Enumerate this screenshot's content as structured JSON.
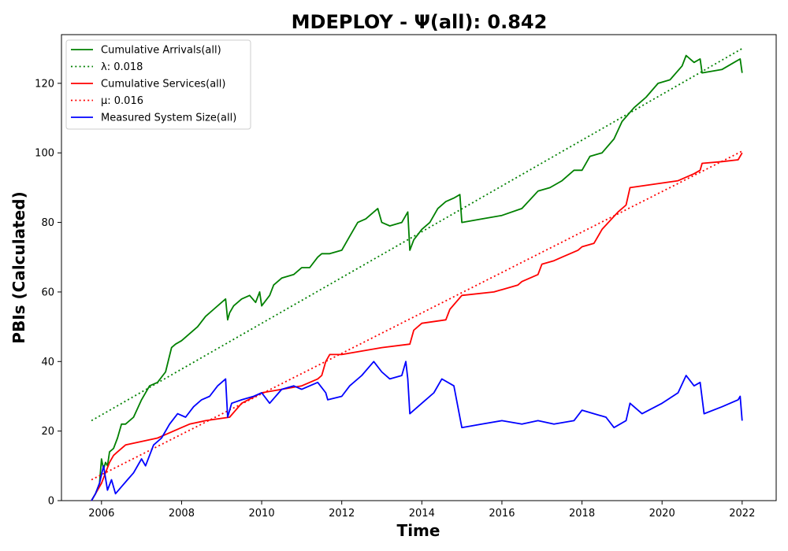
{
  "chart_data": {
    "type": "line",
    "title": "MDEPLOY -  Ψ(all): 0.842",
    "xlabel": "Time",
    "ylabel": "PBIs (Calculated)",
    "xlim": [
      2005.0,
      2022.85
    ],
    "ylim": [
      0,
      134
    ],
    "xticks": [
      2006,
      2008,
      2010,
      2012,
      2014,
      2016,
      2018,
      2020,
      2022
    ],
    "xtick_labels": [
      "2006",
      "2008",
      "2010",
      "2012",
      "2014",
      "2016",
      "2018",
      "2020",
      "2022"
    ],
    "yticks": [
      0,
      20,
      40,
      60,
      80,
      100,
      120
    ],
    "ytick_labels": [
      "0",
      "20",
      "40",
      "60",
      "80",
      "100",
      "120"
    ],
    "grid": false,
    "legend_position": "upper-left",
    "legend": [
      {
        "label": "Cumulative Arrivals(all)",
        "color": "#008000",
        "style": "solid"
      },
      {
        "label": "λ: 0.018",
        "color": "#008000",
        "style": "dotted"
      },
      {
        "label": "Cumulative Services(all)",
        "color": "#ff0000",
        "style": "solid"
      },
      {
        "label": "μ: 0.016",
        "color": "#ff0000",
        "style": "dotted"
      },
      {
        "label": "Measured System Size(all)",
        "color": "#0000ff",
        "style": "solid"
      }
    ],
    "series": [
      {
        "name": "Cumulative Arrivals(all)",
        "color": "#008000",
        "style": "solid",
        "x": [
          2005.75,
          2005.85,
          2005.95,
          2006.0,
          2006.05,
          2006.1,
          2006.15,
          2006.2,
          2006.3,
          2006.4,
          2006.5,
          2006.6,
          2006.8,
          2007.0,
          2007.2,
          2007.4,
          2007.6,
          2007.75,
          2007.85,
          2008.0,
          2008.2,
          2008.4,
          2008.6,
          2008.8,
          2009.0,
          2009.1,
          2009.15,
          2009.2,
          2009.3,
          2009.5,
          2009.7,
          2009.85,
          2009.95,
          2010.0,
          2010.2,
          2010.3,
          2010.5,
          2010.8,
          2011.0,
          2011.2,
          2011.4,
          2011.5,
          2011.7,
          2012.0,
          2012.2,
          2012.4,
          2012.6,
          2012.9,
          2013.0,
          2013.2,
          2013.5,
          2013.65,
          2013.7,
          2013.8,
          2014.0,
          2014.2,
          2014.4,
          2014.6,
          2014.8,
          2014.95,
          2015.0,
          2015.5,
          2016.0,
          2016.5,
          2016.9,
          2017.2,
          2017.5,
          2017.8,
          2018.0,
          2018.2,
          2018.5,
          2018.8,
          2019.0,
          2019.3,
          2019.6,
          2019.9,
          2020.2,
          2020.5,
          2020.6,
          2020.8,
          2020.95,
          2021.0,
          2021.5,
          2021.8,
          2021.95,
          2022.0
        ],
        "values": [
          0,
          2,
          5,
          12,
          9,
          11,
          10,
          14,
          15,
          18,
          22,
          22,
          24,
          29,
          33,
          34,
          37,
          44,
          45,
          46,
          48,
          50,
          53,
          55,
          57,
          58,
          52,
          54,
          56,
          58,
          59,
          57,
          60,
          56,
          59,
          62,
          64,
          65,
          67,
          67,
          70,
          71,
          71,
          72,
          76,
          80,
          81,
          84,
          80,
          79,
          80,
          83,
          72,
          75,
          78,
          80,
          84,
          86,
          87,
          88,
          80,
          81,
          82,
          84,
          89,
          90,
          92,
          95,
          95,
          99,
          100,
          104,
          109,
          113,
          116,
          120,
          121,
          125,
          128,
          126,
          127,
          123,
          124,
          126,
          127,
          123
        ]
      },
      {
        "name": "λ: 0.018",
        "color": "#008000",
        "style": "dotted",
        "x": [
          2005.75,
          2022.0
        ],
        "values": [
          23,
          130
        ]
      },
      {
        "name": "Cumulative Services(all)",
        "color": "#ff0000",
        "style": "solid",
        "x": [
          2005.75,
          2005.85,
          2006.0,
          2006.1,
          2006.2,
          2006.3,
          2006.4,
          2006.5,
          2006.6,
          2007.0,
          2007.4,
          2007.6,
          2008.0,
          2008.2,
          2008.6,
          2009.2,
          2009.5,
          2010.0,
          2010.5,
          2011.0,
          2011.4,
          2011.5,
          2011.6,
          2011.7,
          2012.0,
          2012.5,
          2013.0,
          2013.7,
          2013.8,
          2014.0,
          2014.6,
          2014.7,
          2015.0,
          2015.8,
          2016.4,
          2016.5,
          2016.9,
          2017.0,
          2017.3,
          2017.5,
          2017.9,
          2018.0,
          2018.3,
          2018.5,
          2018.9,
          2019.1,
          2019.2,
          2019.8,
          2020.4,
          2020.8,
          2020.95,
          2021.0,
          2021.5,
          2021.9,
          2022.0
        ],
        "values": [
          0,
          2,
          5,
          8,
          11,
          13,
          14,
          15,
          16,
          17,
          18,
          19,
          21,
          22,
          23,
          24,
          28,
          31,
          32,
          33,
          35,
          36,
          40,
          42,
          42,
          43,
          44,
          45,
          49,
          51,
          52,
          55,
          59,
          60,
          62,
          63,
          65,
          68,
          69,
          70,
          72,
          73,
          74,
          78,
          83,
          85,
          90,
          91,
          92,
          94,
          95,
          97,
          97.5,
          98,
          100
        ]
      },
      {
        "name": "μ: 0.016",
        "color": "#ff0000",
        "style": "dotted",
        "x": [
          2005.75,
          2022.0
        ],
        "values": [
          6,
          100.5
        ]
      },
      {
        "name": "Measured System Size(all)",
        "color": "#0000ff",
        "style": "solid",
        "x": [
          2005.75,
          2005.85,
          2005.95,
          2006.05,
          2006.15,
          2006.25,
          2006.35,
          2006.5,
          2006.65,
          2006.8,
          2007.0,
          2007.1,
          2007.3,
          2007.5,
          2007.7,
          2007.9,
          2008.1,
          2008.3,
          2008.5,
          2008.7,
          2008.9,
          2009.1,
          2009.15,
          2009.25,
          2009.5,
          2009.8,
          2010.0,
          2010.2,
          2010.5,
          2010.8,
          2011.0,
          2011.2,
          2011.4,
          2011.6,
          2011.65,
          2012.0,
          2012.2,
          2012.5,
          2012.8,
          2013.0,
          2013.2,
          2013.5,
          2013.6,
          2013.65,
          2013.7,
          2014.0,
          2014.3,
          2014.5,
          2014.8,
          2015.0,
          2015.5,
          2016.0,
          2016.5,
          2016.9,
          2017.3,
          2017.8,
          2018.0,
          2018.3,
          2018.6,
          2018.8,
          2019.1,
          2019.2,
          2019.5,
          2020.0,
          2020.4,
          2020.6,
          2020.8,
          2020.95,
          2021.05,
          2021.5,
          2021.9,
          2021.95,
          2022.0
        ],
        "values": [
          0,
          2,
          5,
          10,
          3,
          6,
          2,
          4,
          6,
          8,
          12,
          10,
          16,
          18,
          22,
          25,
          24,
          27,
          29,
          30,
          33,
          35,
          24,
          28,
          29,
          30,
          31,
          28,
          32,
          33,
          32,
          33,
          34,
          31,
          29,
          30,
          33,
          36,
          40,
          37,
          35,
          36,
          40,
          35,
          25,
          28,
          31,
          35,
          33,
          21,
          22,
          23,
          22,
          23,
          22,
          23,
          26,
          25,
          24,
          21,
          23,
          28,
          25,
          28,
          31,
          36,
          33,
          34,
          25,
          27,
          29,
          30,
          23
        ]
      }
    ]
  }
}
